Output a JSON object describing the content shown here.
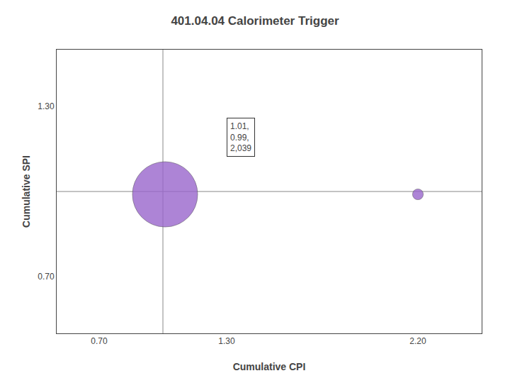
{
  "chart_data": {
    "type": "scatter",
    "title": "401.04.04 Calorimeter Trigger",
    "x_label": "Cumulative CPI",
    "y_label": "Cumulative SPI",
    "x": [
      1.01,
      2.2
    ],
    "values": [
      0.99,
      0.99
    ],
    "sizes": [
      2200,
      60
    ],
    "colors": [
      "#9966cc",
      "#9966cc"
    ],
    "marker": "circle",
    "reference_lines": {
      "x": 1.0,
      "y": 1.0
    },
    "annotations": [
      {
        "text": "1.01,\n0.99,\n2,039"
      }
    ],
    "xlim": [
      0.5,
      2.5
    ],
    "ylim": [
      0.5,
      1.5
    ],
    "xticks": [
      {
        "value": 0.7,
        "label": "0.70"
      },
      {
        "value": 1.3,
        "label": "1.30"
      },
      {
        "value": 2.2,
        "label": "2.20"
      }
    ],
    "yticks": [
      {
        "value": 0.7,
        "label": "0.70"
      },
      {
        "value": 1.3,
        "label": "1.30"
      }
    ],
    "grid": false
  }
}
